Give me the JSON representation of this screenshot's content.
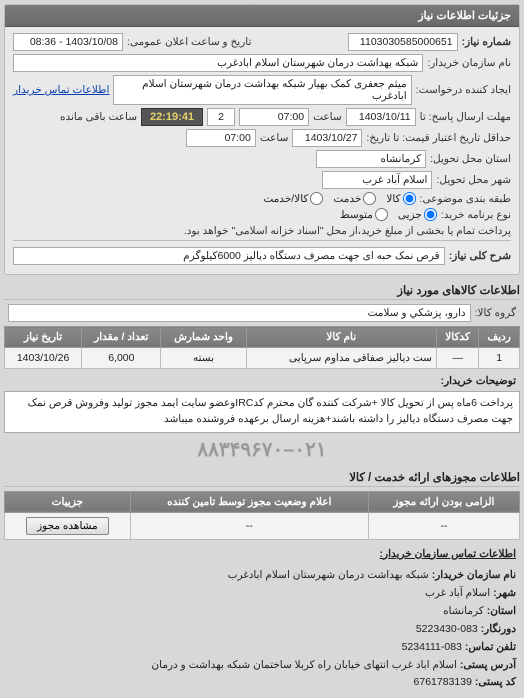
{
  "panel1": {
    "header": "جزئیات اطلاعات نیاز",
    "req_no_lbl": "شماره نیاز:",
    "req_no": "1103030585000651",
    "announce_lbl": "تاریخ و ساعت اعلان عمومی:",
    "announce": "1403/10/08 - 08:36",
    "buyer_lbl": "نام سازمان خریدار:",
    "buyer": "شبکه بهداشت درمان شهرستان اسلام ابادغرب",
    "creator_lbl": "ایجاد کننده درخواست:",
    "creator": "میثم جعفری کمک بهیار شبکه بهداشت درمان شهرستان اسلام ابادغرب",
    "contact_link": "اطلاعات تماس خریدار",
    "deadline_send_lbl": "مهلت ارسال پاسخ: تا",
    "deadline_send_date": "1403/10/11",
    "time_lbl": "ساعت",
    "deadline_send_time": "07:00",
    "remain_days": "2",
    "remain_time": "22:19:41",
    "remain_suffix": "ساعت باقی مانده",
    "validity_lbl": "حداقل تاریخ اعتبار قیمت: تا تاریخ:",
    "validity_date": "1403/10/27",
    "validity_time": "07:00",
    "province_lbl": "استان محل تحویل:",
    "province": "کرمانشاه",
    "city_lbl": "شهر محل تحویل:",
    "city": "اسلام آباد غرب",
    "class_lbl": "طبقه بندی موضوعی:",
    "class_opts": {
      "goods": "کالا",
      "service": "خدمت",
      "both": "کالا/خدمت"
    },
    "buytype_lbl": "نوع برنامه خرید:",
    "buytype_opts": {
      "small": "جزیی",
      "medium": "متوسط"
    },
    "note": "پرداخت تمام یا بخشی از مبلغ خرید،از محل \"اسناد خزانه اسلامی\" خواهد بود.",
    "subject_lbl": "شرح کلی نیاز:",
    "subject": "قرص نمک حبه ای جهت مصرف دستگاه دیالیز 6000کیلوگرم"
  },
  "goods": {
    "title": "اطلاعات کالاهای مورد نیاز",
    "group_lbl": "گروه کالا:",
    "group": "دارو، پزشكي و سلامت",
    "cols": {
      "row": "ردیف",
      "code": "کدکالا",
      "name": "نام کالا",
      "unit": "واحد شمارش",
      "qty": "تعداد / مقدار",
      "date": "تاریخ نیاز"
    },
    "row1": {
      "idx": "1",
      "code": "—",
      "name": "ست دیالیز صفاقی مداوم سرپایی",
      "unit": "بسته",
      "qty": "6,000",
      "date": "1403/10/26"
    },
    "desc_lbl": "توضیحات خریدار:",
    "desc": "پرداخت 6ماه پس از تحویل کالا +شرکت کننده گان محترم کدIRCوعضو سایت ایمد مجوز تولید وفروش قرص نمک جهت مصرف دستگاه دیالیز را داشته باشند+هزینه ارسال برعهده فروشنده میباشد",
    "phone": "۰۲۱–۸۸۳۴۹۶۷۰"
  },
  "permits": {
    "title": "اطلاعات مجوزهای ارائه خدمت / کالا",
    "cols": {
      "mandatory": "الزامی بودن ارائه مجوز",
      "status": "اعلام وضعیت مجوز توسط تامین کننده",
      "details": "جزییات"
    },
    "row": {
      "mandatory": "--",
      "status": "--",
      "btn": "مشاهده مجوز"
    }
  },
  "contact": {
    "title": "اطلاعات تماس سازمان خریدار:",
    "org_lbl": "نام سازمان خریدار:",
    "org": "شبکه بهداشت درمان شهرستان اسلام ابادغرب",
    "city_lbl": "شهر:",
    "city": "اسلام آباد غرب",
    "province_lbl": "استان:",
    "province": "کرمانشاه",
    "fax_lbl": "دورنگار:",
    "fax": "083-5223430",
    "tel_lbl": "تلفن تماس:",
    "tel": "083-5234111",
    "addr_lbl": "آدرس پستی:",
    "addr": "اسلام اباد غرب انتهای خیابان راه کربلا ساختمان شبکه بهداشت و درمان",
    "post_lbl": "کد پستی:",
    "post": "6761783139"
  }
}
